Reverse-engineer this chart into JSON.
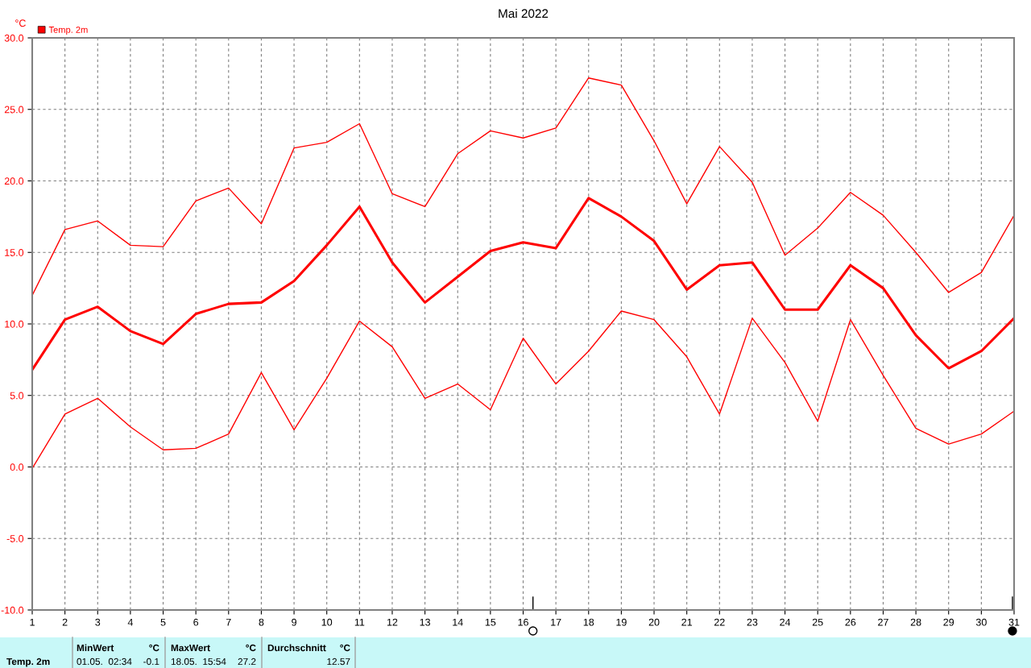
{
  "chart_data": {
    "type": "line",
    "title": "Mai 2022",
    "ylabel": "°C",
    "x": [
      1,
      2,
      3,
      4,
      5,
      6,
      7,
      8,
      9,
      10,
      11,
      12,
      13,
      14,
      15,
      16,
      17,
      18,
      19,
      20,
      21,
      22,
      23,
      24,
      25,
      26,
      27,
      28,
      29,
      30,
      31
    ],
    "series": [
      {
        "color": "#ff0000",
        "values": [
          12.0,
          16.6,
          17.2,
          15.5,
          15.4,
          18.6,
          19.5,
          17.0,
          22.3,
          22.7,
          24.0,
          19.1,
          18.2,
          21.9,
          23.5,
          23.0,
          23.7,
          27.2,
          26.7,
          22.8,
          18.4,
          22.4,
          19.9,
          14.8,
          16.7,
          19.2,
          17.6,
          15.0,
          12.2,
          13.6,
          17.6
        ]
      },
      {
        "name": "Temp. 2m",
        "color": "#ff0000",
        "values": [
          6.8,
          10.3,
          11.2,
          9.5,
          8.6,
          10.7,
          11.4,
          11.5,
          13.0,
          15.5,
          18.2,
          14.3,
          11.5,
          13.3,
          15.1,
          15.7,
          15.3,
          18.8,
          17.5,
          15.8,
          12.4,
          14.1,
          14.3,
          11.0,
          11.0,
          14.1,
          12.5,
          9.2,
          6.9,
          8.1,
          10.4
        ]
      },
      {
        "color": "#ff0000",
        "values": [
          -0.1,
          3.7,
          4.8,
          2.8,
          1.2,
          1.3,
          2.3,
          6.6,
          2.6,
          6.2,
          10.2,
          8.4,
          4.8,
          5.8,
          4.0,
          9.0,
          5.8,
          8.1,
          10.9,
          10.3,
          7.7,
          3.7,
          10.4,
          7.3,
          3.2,
          10.3,
          6.4,
          2.7,
          1.6,
          2.3,
          3.9
        ]
      }
    ],
    "xlim": [
      1,
      31
    ],
    "xticks": [
      1,
      2,
      3,
      4,
      5,
      6,
      7,
      8,
      9,
      10,
      11,
      12,
      13,
      14,
      15,
      16,
      17,
      18,
      19,
      20,
      21,
      22,
      23,
      24,
      25,
      26,
      27,
      28,
      29,
      30,
      31
    ],
    "ylim": [
      -10,
      30
    ],
    "yticks": [
      {
        "value": -10,
        "label": "-10.0"
      },
      {
        "value": -5,
        "label": "-5.0"
      },
      {
        "value": 0,
        "label": "0.0"
      },
      {
        "value": 5,
        "label": "5.0"
      },
      {
        "value": 10,
        "label": "10.0"
      },
      {
        "value": 15,
        "label": "15.0"
      },
      {
        "value": 20,
        "label": "20.0"
      },
      {
        "value": 25,
        "label": "25.0"
      },
      {
        "value": 30,
        "label": "30.0"
      }
    ],
    "grid": true,
    "legend": "top left",
    "marker": "none",
    "line_style": "solid",
    "annotations": [
      "Temp. 2m",
      "MinWert",
      "°C",
      "01.05.  02:34",
      "-0.1",
      "MaxWert",
      "°C",
      "18.05.  15:54",
      "27.2",
      "Durchschnitt",
      "°C",
      "12.57"
    ]
  }
}
